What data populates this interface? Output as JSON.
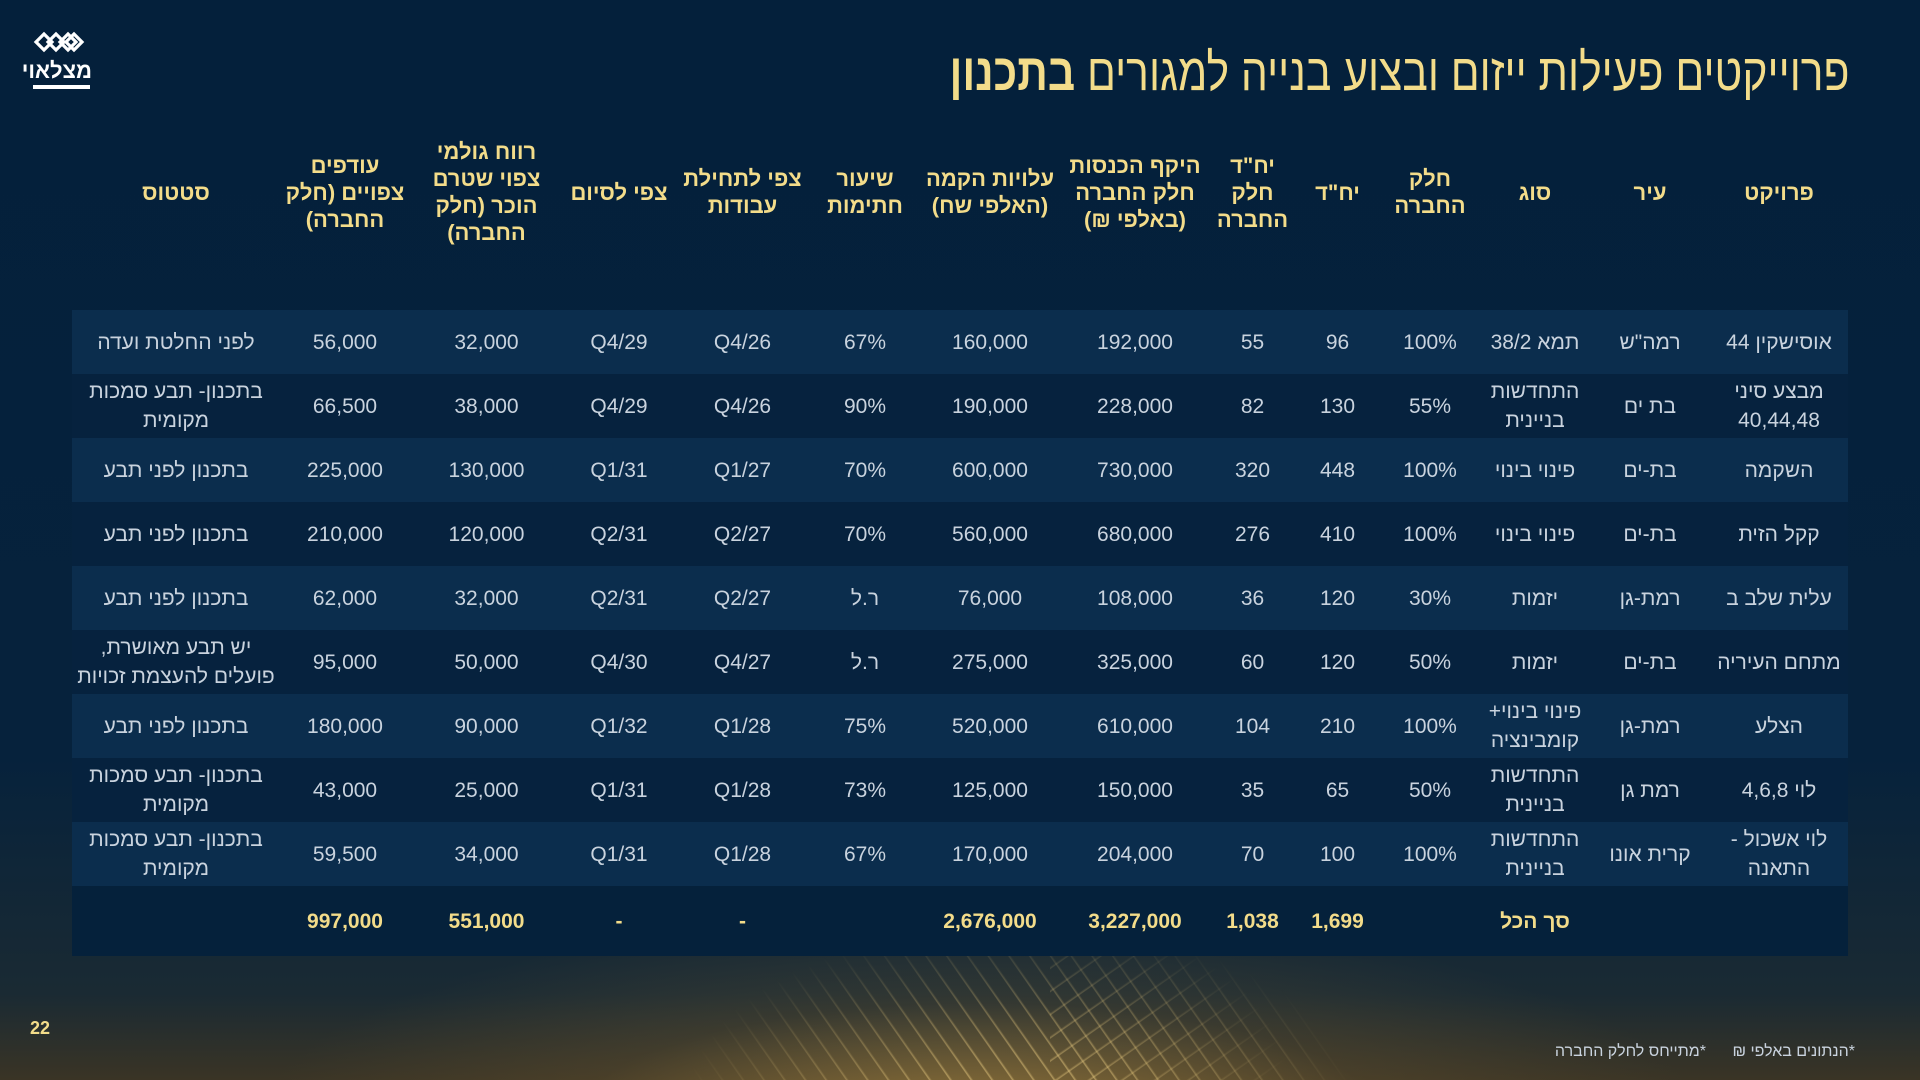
{
  "logo": {
    "text": "מצלאוי",
    "icon": "linked-diamonds-logo-icon"
  },
  "header": {
    "title_main": "פרוייקטים פעילות ייזום ובצוע בנייה למגורים",
    "title_emphasis": "בתכנון"
  },
  "table": {
    "columns": [
      "פרויקט",
      "עיר",
      "סוג",
      "חלק החברה",
      "יח\"ד",
      "יח\"ד חלק החברה",
      "היקף הכנסות חלק החברה (באלפי ₪)",
      "עלויות הקמה (האלפי שח)",
      "שיעור חתימות",
      "צפי לתחילת עבודות",
      "צפי לסיום",
      "רווח גולמי צפוי שטרם הוכר (חלק החברה)",
      "עודפים צפויים (חלק החברה)",
      "סטטוס"
    ],
    "rows": [
      [
        "אוסישקין 44",
        "רמה\"ש",
        "תמא 38/2",
        "100%",
        "96",
        "55",
        "192,000",
        "160,000",
        "67%",
        "Q4/26",
        "Q4/29",
        "32,000",
        "56,000",
        "לפני החלטת ועדה"
      ],
      [
        "מבצע סיני 40,44,48",
        "בת ים",
        "התחדשות בניינית",
        "55%",
        "130",
        "82",
        "228,000",
        "190,000",
        "90%",
        "Q4/26",
        "Q4/29",
        "38,000",
        "66,500",
        "בתכנון- תבע סמכות מקומית"
      ],
      [
        "השקמה",
        "בת-ים",
        "פינוי בינוי",
        "100%",
        "448",
        "320",
        "730,000",
        "600,000",
        "70%",
        "Q1/27",
        "Q1/31",
        "130,000",
        "225,000",
        "בתכנון לפני תבע"
      ],
      [
        "קקל הזית",
        "בת-ים",
        "פינוי בינוי",
        "100%",
        "410",
        "276",
        "680,000",
        "560,000",
        "70%",
        "Q2/27",
        "Q2/31",
        "120,000",
        "210,000",
        "בתכנון לפני תבע"
      ],
      [
        "עלית שלב ב",
        "רמת-גן",
        "יזמות",
        "30%",
        "120",
        "36",
        "108,000",
        "76,000",
        "ר.ל",
        "Q2/27",
        "Q2/31",
        "32,000",
        "62,000",
        "בתכנון לפני תבע"
      ],
      [
        "מתחם העיריה",
        "בת-ים",
        "יזמות",
        "50%",
        "120",
        "60",
        "325,000",
        "275,000",
        "ר.ל",
        "Q4/27",
        "Q4/30",
        "50,000",
        "95,000",
        "יש תבע מאושרת, פועלים להעצמת זכויות"
      ],
      [
        "הצלע",
        "רמת-גן",
        "פינוי בינוי+ קומבינציה",
        "100%",
        "210",
        "104",
        "610,000",
        "520,000",
        "75%",
        "Q1/28",
        "Q1/32",
        "90,000",
        "180,000",
        "בתכנון לפני תבע"
      ],
      [
        "לוי 4,6,8",
        "רמת גן",
        "התחדשות בניינית",
        "50%",
        "65",
        "35",
        "150,000",
        "125,000",
        "73%",
        "Q1/28",
        "Q1/31",
        "25,000",
        "43,000",
        "בתכנון- תבע סמכות מקומית"
      ],
      [
        "לוי אשכול - התאנה",
        "קרית אונו",
        "התחדשות בניינית",
        "100%",
        "100",
        "70",
        "204,000",
        "170,000",
        "67%",
        "Q1/28",
        "Q1/31",
        "34,000",
        "59,500",
        "בתכנון- תבע סמכות מקומית"
      ]
    ],
    "total": {
      "label": "סך הכל",
      "units": "1,699",
      "units_company": "1,038",
      "revenue": "3,227,000",
      "costs": "2,676,000",
      "start": "-",
      "end": "-",
      "gross_profit": "551,000",
      "surplus": "997,000"
    }
  },
  "footer": {
    "page_number": "22",
    "note_thousands": "*הנתונים באלפי ₪",
    "note_company_share": "*מתייחס לחלק החברה"
  },
  "colors": {
    "background": "#04203b",
    "accent_gold": "#f3dc8a",
    "row_light": "#0b2d4d",
    "row_dark": "#06223e",
    "cell_text": "#c9d3de"
  }
}
